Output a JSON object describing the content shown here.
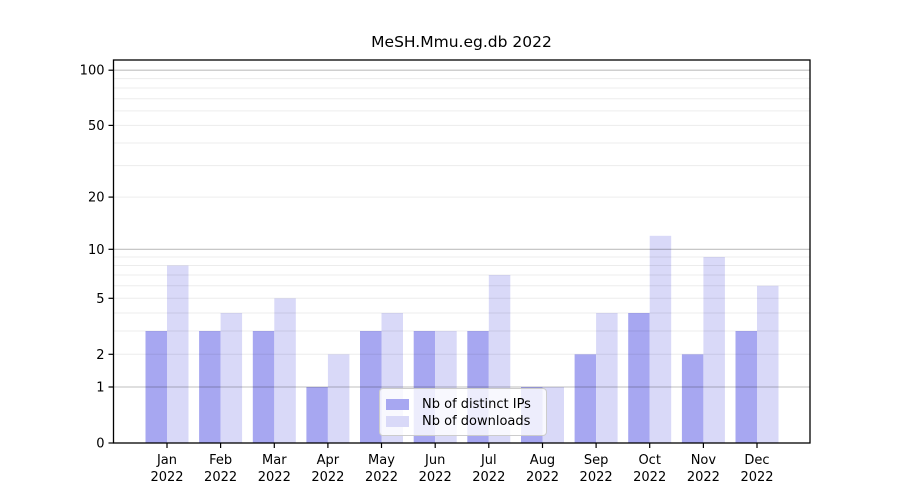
{
  "chart_data": {
    "type": "bar",
    "title": "MeSH.Mmu.eg.db 2022",
    "categories": [
      "Jan 2022",
      "Feb 2022",
      "Mar 2022",
      "Apr 2022",
      "May 2022",
      "Jun 2022",
      "Jul 2022",
      "Aug 2022",
      "Sep 2022",
      "Oct 2022",
      "Nov 2022",
      "Dec 2022"
    ],
    "series": [
      {
        "name": "Nb of distinct IPs",
        "color": "#a7a7f1",
        "values": [
          3,
          3,
          3,
          1,
          3,
          3,
          3,
          1,
          2,
          4,
          2,
          3
        ]
      },
      {
        "name": "Nb of downloads",
        "color": "#d9d9f8",
        "values": [
          8,
          4,
          5,
          2,
          4,
          3,
          7,
          1,
          4,
          12,
          9,
          6
        ]
      }
    ],
    "y_axis": {
      "scale": "log10(1+y)",
      "tick_labels": [
        0,
        1,
        2,
        5,
        10,
        20,
        50,
        100
      ],
      "major_gridlines": [
        1,
        10,
        100
      ],
      "minor_gridlines": [
        2,
        3,
        4,
        5,
        6,
        7,
        8,
        9,
        20,
        30,
        40,
        50,
        60,
        70,
        80,
        90
      ],
      "ylim": [
        0,
        114
      ]
    },
    "xlabel": "",
    "ylabel": "",
    "grid": true,
    "legend_position": "inside-bottom-center"
  },
  "colors": {
    "background": "#ffffff",
    "bar_distinct_ips": "#a7a7f1",
    "bar_downloads": "#d9d9f8",
    "gridline_base": "#000000",
    "spine": "#000000",
    "text": "#000000",
    "legend_border": "#cccccc"
  }
}
